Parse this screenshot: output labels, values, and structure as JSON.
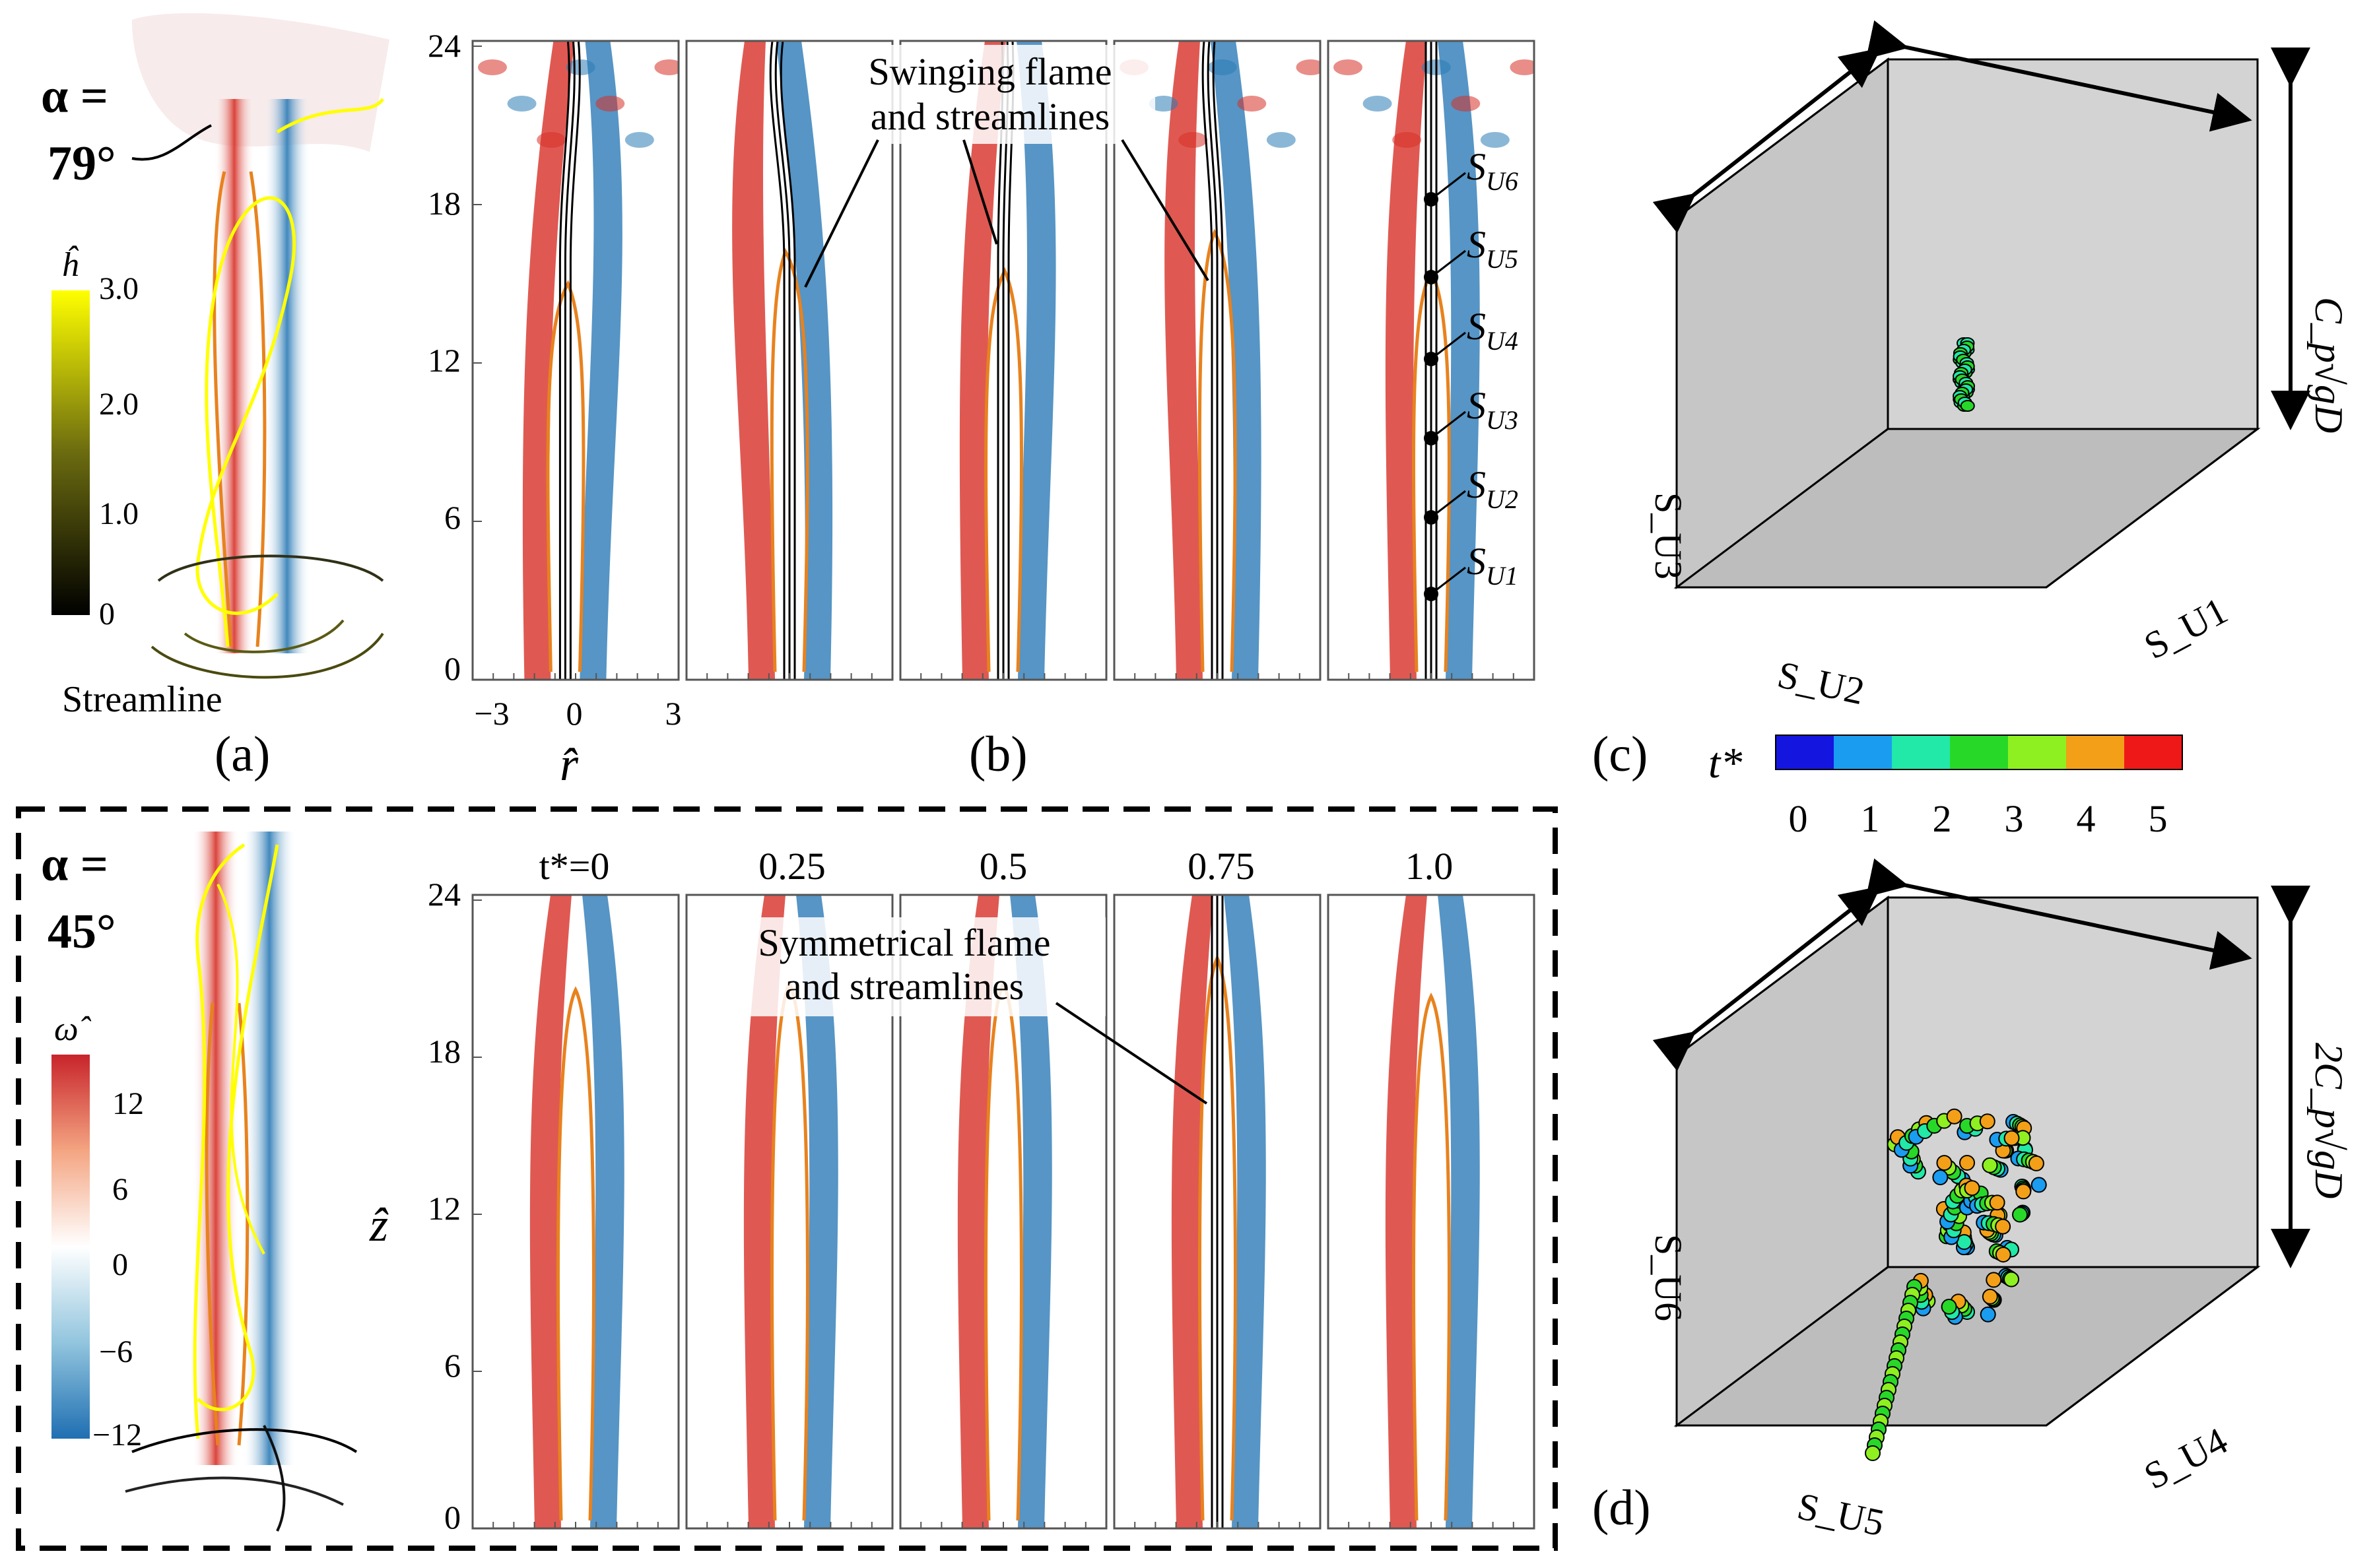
{
  "figure": {
    "panel_labels": {
      "a": "(a)",
      "b": "(b)",
      "c": "(c)",
      "d": "(d)"
    },
    "top": {
      "alpha_label": "α =",
      "alpha_value": "79°",
      "colorbar_symbol": "ĥ",
      "colorbar_ticks": [
        "3.0",
        "2.0",
        "1.0",
        "0"
      ],
      "streamline_label": "Streamline",
      "annotation_line1": "Swinging flame",
      "annotation_line2": "and streamlines",
      "probe_labels": [
        "S_U6",
        "S_U5",
        "S_U4",
        "S_U3",
        "S_U2",
        "S_U1"
      ],
      "z_ticks": [
        "24",
        "18",
        "12",
        "6",
        "0"
      ],
      "r_ticks": [
        "−3",
        "0",
        "3"
      ],
      "r_axis_label": "r̂"
    },
    "bottom": {
      "alpha_label": "α =",
      "alpha_value": "45°",
      "colorbar_symbol": "ω̂",
      "colorbar_ticks": [
        "12",
        "6",
        "0",
        "−6",
        "−12"
      ],
      "time_labels": [
        "t*=0",
        "0.25",
        "0.5",
        "0.75",
        "1.0"
      ],
      "annotation_line1": "Symmetrical flame",
      "annotation_line2": "and streamlines",
      "z_ticks": [
        "24",
        "18",
        "12",
        "6",
        "0"
      ],
      "z_axis_label": "ẑ"
    },
    "phase_c": {
      "axis_vertical": "S_U3",
      "axis_bottom": "S_U2",
      "axis_right": "S_U1",
      "scale_label": "C_p√gD"
    },
    "phase_d": {
      "axis_vertical": "S_U6",
      "axis_bottom": "S_U5",
      "axis_right": "S_U4",
      "scale_label": "2C_p√gD"
    },
    "time_colorbar": {
      "symbol": "t*",
      "ticks": [
        "0",
        "1",
        "2",
        "3",
        "4",
        "5"
      ],
      "colors": [
        "#1515e0",
        "#1a9cf0",
        "#22e8a8",
        "#28d828",
        "#8ef020",
        "#f3a018",
        "#ee1818"
      ]
    },
    "colors": {
      "positive": "#d73027",
      "negative": "#2c7bb6",
      "flame_contour": "#e8821e",
      "streamline_h_high": "#ffff00",
      "cube_face": "#d3d3d3"
    }
  }
}
